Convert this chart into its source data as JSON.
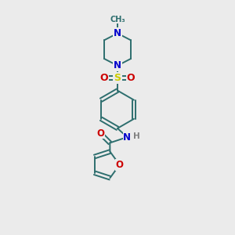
{
  "bg_color": "#ebebeb",
  "atom_colors": {
    "C": "#2d6e6e",
    "N": "#0000cc",
    "O": "#cc0000",
    "S": "#cccc00",
    "H": "#808080"
  },
  "bond_color": "#2d6e6e",
  "figsize": [
    3.0,
    3.0
  ],
  "dpi": 100,
  "xlim": [
    0,
    10
  ],
  "ylim": [
    0,
    10
  ]
}
